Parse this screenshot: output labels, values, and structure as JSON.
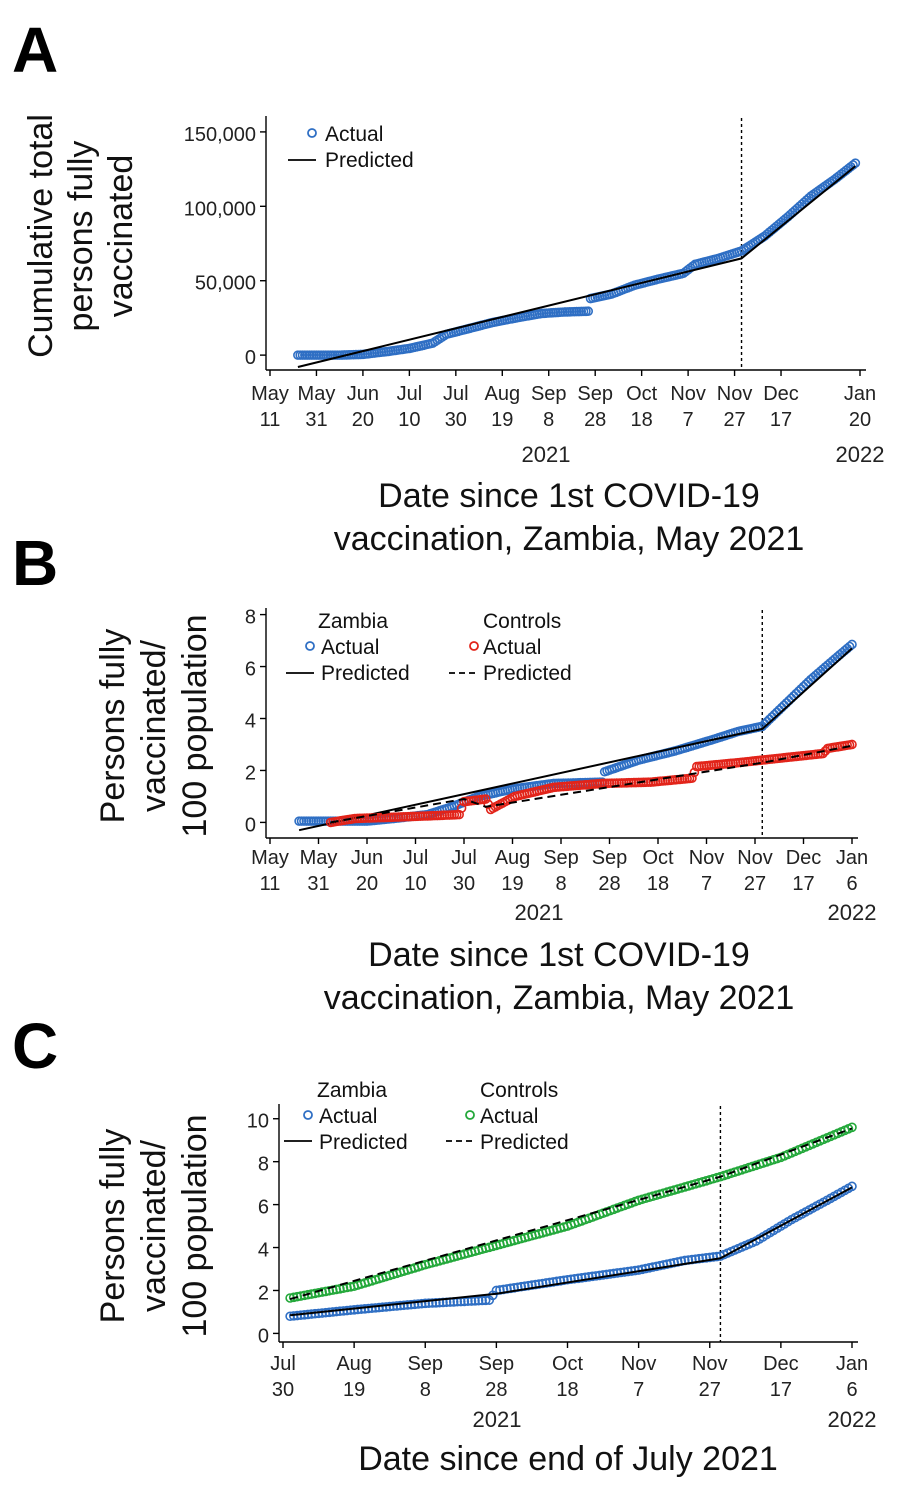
{
  "figure": {
    "panel_labels": [
      "A",
      "B",
      "C"
    ]
  },
  "colors": {
    "zambia_actual": "#2f6fc4",
    "controls_b": "#e2241a",
    "controls_c": "#23a83a",
    "predicted": "#000000"
  },
  "chart_data": [
    {
      "panel": "A",
      "type": "scatter",
      "ylabel": [
        "Cumulative total",
        "persons fully",
        "vaccinated"
      ],
      "xlabel": [
        "Date since 1st COVID-19",
        "vaccination, Zambia, May 2021"
      ],
      "x_ticks": [
        [
          "May",
          "11"
        ],
        [
          "May",
          "31"
        ],
        [
          "Jun",
          "20"
        ],
        [
          "Jul",
          "10"
        ],
        [
          "Jul",
          "30"
        ],
        [
          "Aug",
          "19"
        ],
        [
          "Sep",
          "8"
        ],
        [
          "Sep",
          "28"
        ],
        [
          "Oct",
          "18"
        ],
        [
          "Nov",
          "7"
        ],
        [
          "Nov",
          "27"
        ],
        [
          "Dec",
          "17"
        ],
        [
          "Jan",
          "20"
        ]
      ],
      "y_ticks": [
        "0",
        "50,000",
        "100,000",
        "150,000"
      ],
      "y_tick_values": [
        0,
        50000,
        100000,
        150000
      ],
      "year_labels": [
        "2021",
        "2022"
      ],
      "ylim": [
        -10000,
        158000
      ],
      "x_range": [
        "2021-05-11",
        "2022-01-20"
      ],
      "intervention_date": "2021-11-30",
      "legend": [
        {
          "marker": "circle",
          "label": "Actual"
        },
        {
          "marker": "solid",
          "label": "Predicted"
        }
      ],
      "series": [
        {
          "name": "Actual",
          "kind": "points",
          "color": "zambia_actual",
          "points": [
            [
              "2021-05-23",
              0
            ],
            [
              "2021-06-10",
              0
            ],
            [
              "2021-06-20",
              500
            ],
            [
              "2021-07-01",
              2500
            ],
            [
              "2021-07-10",
              4500
            ],
            [
              "2021-07-20",
              8000
            ],
            [
              "2021-07-26",
              14000
            ],
            [
              "2021-08-05",
              18000
            ],
            [
              "2021-08-15",
              22000
            ],
            [
              "2021-08-25",
              25000
            ],
            [
              "2021-09-05",
              28000
            ],
            [
              "2021-09-15",
              29000
            ],
            [
              "2021-09-25",
              29500
            ],
            [
              "2021-09-26",
              38000
            ],
            [
              "2021-10-05",
              41000
            ],
            [
              "2021-10-15",
              47000
            ],
            [
              "2021-10-25",
              51000
            ],
            [
              "2021-11-05",
              55000
            ],
            [
              "2021-11-10",
              61000
            ],
            [
              "2021-11-20",
              65000
            ],
            [
              "2021-11-30",
              70000
            ],
            [
              "2021-12-10",
              80000
            ],
            [
              "2021-12-20",
              93000
            ],
            [
              "2021-12-30",
              107000
            ],
            [
              "2022-01-09",
              118000
            ],
            [
              "2022-01-18",
              129000
            ]
          ]
        },
        {
          "name": "Predicted",
          "kind": "line",
          "style": "solid",
          "color": "predicted",
          "points": [
            [
              "2021-05-23",
              -8000
            ],
            [
              "2021-11-30",
              65000
            ],
            [
              "2022-01-18",
              127000
            ]
          ]
        }
      ]
    },
    {
      "panel": "B",
      "type": "scatter",
      "ylabel": [
        "Persons fully",
        "vaccinated/",
        "100 population"
      ],
      "xlabel": [
        "Date since 1st COVID-19",
        "vaccination, Zambia, May 2021"
      ],
      "x_ticks": [
        [
          "May",
          "11"
        ],
        [
          "May",
          "31"
        ],
        [
          "Jun",
          "20"
        ],
        [
          "Jul",
          "10"
        ],
        [
          "Jul",
          "30"
        ],
        [
          "Aug",
          "19"
        ],
        [
          "Sep",
          "8"
        ],
        [
          "Sep",
          "28"
        ],
        [
          "Oct",
          "18"
        ],
        [
          "Nov",
          "7"
        ],
        [
          "Nov",
          "27"
        ],
        [
          "Dec",
          "17"
        ],
        [
          "Jan",
          "6"
        ]
      ],
      "y_ticks": [
        "0",
        "2",
        "4",
        "6",
        "8"
      ],
      "y_tick_values": [
        0,
        2,
        4,
        6,
        8
      ],
      "year_labels": [
        "2021",
        "2022"
      ],
      "ylim": [
        -0.6,
        8.1
      ],
      "x_range": [
        "2021-05-11",
        "2022-01-06"
      ],
      "intervention_date": "2021-11-30",
      "legend": [
        {
          "group": "Zambia",
          "marker": "circle",
          "label": "Actual",
          "color": "zambia_actual"
        },
        {
          "group": "Zambia",
          "marker": "solid",
          "label": "Predicted"
        },
        {
          "group": "Controls",
          "marker": "circle",
          "label": "Actual",
          "color": "controls_b"
        },
        {
          "group": "Controls",
          "marker": "dashed",
          "label": "Predicted"
        }
      ],
      "series": [
        {
          "name": "Zambia Actual",
          "kind": "points",
          "color": "zambia_actual",
          "points": [
            [
              "2021-05-23",
              0.05
            ],
            [
              "2021-06-10",
              0.05
            ],
            [
              "2021-06-20",
              0.05
            ],
            [
              "2021-07-01",
              0.15
            ],
            [
              "2021-07-15",
              0.3
            ],
            [
              "2021-07-25",
              0.6
            ],
            [
              "2021-08-05",
              1.0
            ],
            [
              "2021-08-20",
              1.3
            ],
            [
              "2021-09-05",
              1.5
            ],
            [
              "2021-09-25",
              1.55
            ],
            [
              "2021-09-26",
              1.95
            ],
            [
              "2021-10-10",
              2.4
            ],
            [
              "2021-10-25",
              2.75
            ],
            [
              "2021-11-10",
              3.2
            ],
            [
              "2021-11-20",
              3.5
            ],
            [
              "2021-11-30",
              3.7
            ],
            [
              "2021-12-10",
              4.6
            ],
            [
              "2021-12-20",
              5.5
            ],
            [
              "2021-12-30",
              6.3
            ],
            [
              "2022-01-06",
              6.85
            ]
          ]
        },
        {
          "name": "Zambia Predicted",
          "kind": "line",
          "style": "solid",
          "color": "predicted",
          "points": [
            [
              "2021-05-23",
              -0.3
            ],
            [
              "2021-11-30",
              3.6
            ],
            [
              "2022-01-06",
              6.7
            ]
          ]
        },
        {
          "name": "Controls Actual",
          "kind": "points",
          "color": "controls_b",
          "points": [
            [
              "2021-06-05",
              0.0
            ],
            [
              "2021-06-15",
              0.15
            ],
            [
              "2021-07-01",
              0.2
            ],
            [
              "2021-07-15",
              0.25
            ],
            [
              "2021-07-28",
              0.3
            ],
            [
              "2021-07-30",
              0.8
            ],
            [
              "2021-08-08",
              0.9
            ],
            [
              "2021-08-10",
              0.5
            ],
            [
              "2021-08-20",
              1.0
            ],
            [
              "2021-09-05",
              1.35
            ],
            [
              "2021-09-25",
              1.5
            ],
            [
              "2021-10-15",
              1.55
            ],
            [
              "2021-11-01",
              1.7
            ],
            [
              "2021-11-03",
              2.15
            ],
            [
              "2021-11-20",
              2.3
            ],
            [
              "2021-12-10",
              2.5
            ],
            [
              "2021-12-25",
              2.65
            ],
            [
              "2021-12-27",
              2.85
            ],
            [
              "2022-01-06",
              3.0
            ]
          ]
        },
        {
          "name": "Controls Predicted",
          "kind": "line",
          "style": "dashed",
          "color": "predicted",
          "points": [
            [
              "2021-06-05",
              0.0
            ],
            [
              "2021-07-30",
              0.9
            ],
            [
              "2021-08-08",
              0.6
            ],
            [
              "2021-11-30",
              2.3
            ],
            [
              "2022-01-06",
              2.95
            ]
          ]
        }
      ]
    },
    {
      "panel": "C",
      "type": "scatter",
      "ylabel": [
        "Persons fully",
        "vaccinated/",
        "100 population"
      ],
      "xlabel": [
        "Date since end of July 2021"
      ],
      "x_ticks": [
        [
          "Jul",
          "30"
        ],
        [
          "Aug",
          "19"
        ],
        [
          "Sep",
          "8"
        ],
        [
          "Sep",
          "28"
        ],
        [
          "Oct",
          "18"
        ],
        [
          "Nov",
          "7"
        ],
        [
          "Nov",
          "27"
        ],
        [
          "Dec",
          "17"
        ],
        [
          "Jan",
          "6"
        ]
      ],
      "y_ticks": [
        "0",
        "2",
        "4",
        "6",
        "8",
        "10"
      ],
      "y_tick_values": [
        0,
        2,
        4,
        6,
        8,
        10
      ],
      "year_labels": [
        "2021",
        "2022"
      ],
      "ylim": [
        -0.4,
        10.5
      ],
      "x_range": [
        "2021-07-30",
        "2022-01-06"
      ],
      "intervention_date": "2021-11-30",
      "legend": [
        {
          "group": "Zambia",
          "marker": "circle",
          "label": "Actual",
          "color": "zambia_actual"
        },
        {
          "group": "Zambia",
          "marker": "solid",
          "label": "Predicted"
        },
        {
          "group": "Controls",
          "marker": "circle",
          "label": "Actual",
          "color": "controls_c"
        },
        {
          "group": "Controls",
          "marker": "dashed",
          "label": "Predicted"
        }
      ],
      "series": [
        {
          "name": "Zambia Actual",
          "kind": "points",
          "color": "zambia_actual",
          "points": [
            [
              "2021-08-01",
              0.8
            ],
            [
              "2021-08-19",
              1.1
            ],
            [
              "2021-09-08",
              1.4
            ],
            [
              "2021-09-26",
              1.55
            ],
            [
              "2021-09-28",
              2.0
            ],
            [
              "2021-10-18",
              2.5
            ],
            [
              "2021-11-07",
              2.95
            ],
            [
              "2021-11-20",
              3.4
            ],
            [
              "2021-11-30",
              3.6
            ],
            [
              "2021-12-10",
              4.3
            ],
            [
              "2021-12-20",
              5.3
            ],
            [
              "2021-12-30",
              6.2
            ],
            [
              "2022-01-06",
              6.85
            ]
          ]
        },
        {
          "name": "Zambia Predicted",
          "kind": "line",
          "style": "solid",
          "color": "predicted",
          "points": [
            [
              "2021-08-01",
              0.85
            ],
            [
              "2021-09-28",
              1.85
            ],
            [
              "2021-11-30",
              3.5
            ],
            [
              "2022-01-06",
              6.8
            ]
          ]
        },
        {
          "name": "Controls Actual",
          "kind": "points",
          "color": "controls_c",
          "points": [
            [
              "2021-08-01",
              1.65
            ],
            [
              "2021-08-19",
              2.2
            ],
            [
              "2021-09-08",
              3.2
            ],
            [
              "2021-09-28",
              4.1
            ],
            [
              "2021-10-18",
              5.0
            ],
            [
              "2021-11-07",
              6.2
            ],
            [
              "2021-11-30",
              7.3
            ],
            [
              "2021-12-17",
              8.2
            ],
            [
              "2022-01-06",
              9.6
            ]
          ]
        },
        {
          "name": "Controls Predicted",
          "kind": "line",
          "style": "dashed",
          "color": "predicted",
          "points": [
            [
              "2021-08-01",
              1.6
            ],
            [
              "2021-11-30",
              7.3
            ],
            [
              "2022-01-06",
              9.55
            ]
          ]
        }
      ]
    }
  ]
}
